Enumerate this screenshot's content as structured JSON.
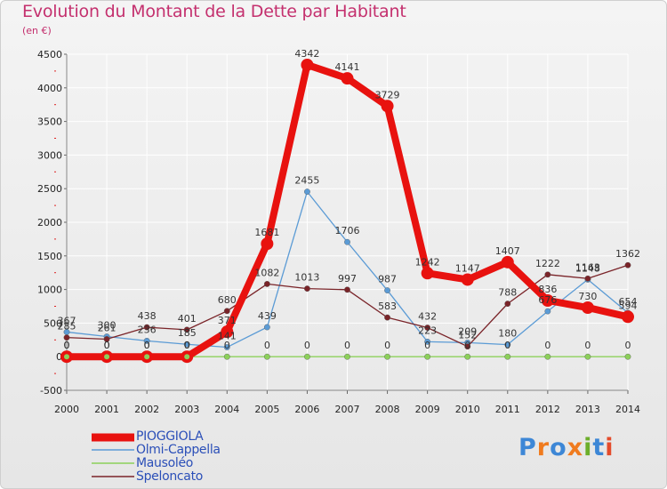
{
  "title": "Evolution du Montant de la Dette par Habitant",
  "subtitle": "(en €)",
  "logo": {
    "text": "Proxiti",
    "letter_colors": [
      "#3d87d6",
      "#f07b1e",
      "#3d87d6",
      "#f07b1e",
      "#6cae2a",
      "#3d87d6",
      "#e44b2b"
    ]
  },
  "chart_data": {
    "type": "line",
    "x": [
      2000,
      2001,
      2002,
      2003,
      2004,
      2005,
      2006,
      2007,
      2008,
      2009,
      2010,
      2011,
      2012,
      2013,
      2014
    ],
    "ylim": [
      -500,
      4500
    ],
    "yticks": [
      -500,
      0,
      500,
      1000,
      1500,
      2000,
      2500,
      3000,
      3500,
      4000,
      4500
    ],
    "grid": true,
    "legend_position": "bottom-left",
    "series": [
      {
        "name": "PIOGGIOLA",
        "color": "#e8120f",
        "values": [
          0,
          0,
          0,
          0,
          371,
          1681,
          4342,
          4141,
          3729,
          1242,
          1147,
          1407,
          836,
          730,
          594
        ],
        "labels": [
          "0",
          "0",
          "0",
          "0",
          "371",
          "1681",
          "4342",
          "4141",
          "3729",
          "1242",
          "1147",
          "1407",
          "836",
          "730",
          "594"
        ]
      },
      {
        "name": "Olmi-Cappella",
        "color": "#5b9bd5",
        "values": [
          367,
          300,
          236,
          185,
          141,
          439,
          2455,
          1706,
          987,
          223,
          209,
          180,
          676,
          1148,
          654
        ],
        "labels": [
          "367",
          "300",
          "236",
          "185",
          "141",
          "439",
          "2455",
          "1706",
          "987",
          "223",
          "209",
          "180",
          "676",
          "1148",
          "654"
        ]
      },
      {
        "name": "Mausoléo",
        "color": "#8cd05a",
        "values": [
          0,
          0,
          0,
          0,
          0,
          0,
          0,
          0,
          0,
          0,
          0,
          0,
          0,
          0,
          0
        ],
        "labels": [
          "0",
          "0",
          "0",
          "0",
          "0",
          "0",
          "0",
          "0",
          "0",
          "0",
          "0",
          "0",
          "0",
          "0",
          "0"
        ]
      },
      {
        "name": "Speloncato",
        "color": "#7a2429",
        "values": [
          285,
          261,
          438,
          401,
          680,
          1082,
          1013,
          997,
          583,
          432,
          152,
          788,
          1222,
          1163,
          1362
        ],
        "labels": [
          "285",
          "261",
          "438",
          "401",
          "680",
          "1082",
          "1013",
          "997",
          "583",
          "432",
          "152",
          "788",
          "1222",
          "1163",
          "1362"
        ]
      }
    ]
  }
}
